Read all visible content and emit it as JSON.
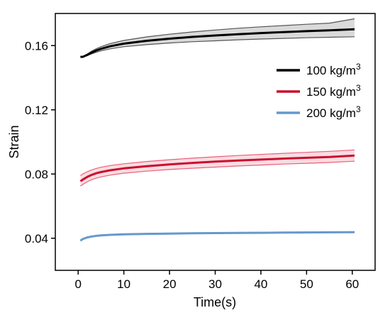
{
  "chart_data": {
    "type": "line",
    "xlabel": "Time(s)",
    "ylabel": "Strain",
    "xlim": [
      -5,
      65
    ],
    "ylim": [
      0.02,
      0.18
    ],
    "x_ticks": [
      0,
      10,
      20,
      30,
      40,
      50,
      60
    ],
    "x_tick_labels": [
      "0",
      "10",
      "20",
      "30",
      "40",
      "50",
      "60"
    ],
    "y_ticks": [
      0.04,
      0.08,
      0.12,
      0.16
    ],
    "y_tick_labels": [
      "0.04",
      "0.08",
      "0.12",
      "0.16"
    ],
    "grid": false,
    "legend_position": "right",
    "x": [
      0.5,
      1,
      2,
      3,
      4,
      5,
      7,
      10,
      15,
      20,
      25,
      30,
      35,
      40,
      45,
      50,
      55,
      60.5
    ],
    "series": [
      {
        "name": "100 kg/m3",
        "label_main": "100 kg/m",
        "label_sup": "3",
        "color": "#000000",
        "band_color": "#555555",
        "values": [
          0.153,
          0.153,
          0.1542,
          0.1557,
          0.157,
          0.158,
          0.1596,
          0.1612,
          0.163,
          0.1643,
          0.1654,
          0.1663,
          0.1671,
          0.1678,
          0.1684,
          0.169,
          0.1695,
          0.1702
        ],
        "upper": [
          0.153,
          0.1532,
          0.1548,
          0.1566,
          0.1581,
          0.1593,
          0.1612,
          0.1632,
          0.1654,
          0.1671,
          0.1685,
          0.1697,
          0.1708,
          0.1717,
          0.1725,
          0.1733,
          0.174,
          0.1767
        ],
        "lower": [
          0.153,
          0.153,
          0.1538,
          0.1549,
          0.1559,
          0.1567,
          0.158,
          0.1593,
          0.1606,
          0.1616,
          0.1624,
          0.163,
          0.1636,
          0.1641,
          0.1645,
          0.1649,
          0.1652,
          0.1655
        ]
      },
      {
        "name": "150 kg/m3",
        "label_main": "150 kg/m",
        "label_sup": "3",
        "color": "#c8102e",
        "band_color": "#e8607a",
        "values": [
          0.0755,
          0.0765,
          0.0782,
          0.0795,
          0.0805,
          0.0812,
          0.0823,
          0.0835,
          0.0849,
          0.086,
          0.0869,
          0.0877,
          0.0884,
          0.089,
          0.0896,
          0.0901,
          0.0906,
          0.0915
        ],
        "upper": [
          0.079,
          0.08,
          0.0815,
          0.0826,
          0.0835,
          0.0842,
          0.0853,
          0.0864,
          0.0878,
          0.0889,
          0.0899,
          0.0907,
          0.0915,
          0.0922,
          0.0929,
          0.0935,
          0.0941,
          0.095
        ],
        "lower": [
          0.0725,
          0.0735,
          0.0752,
          0.0765,
          0.0775,
          0.0782,
          0.0793,
          0.0805,
          0.0818,
          0.0828,
          0.0836,
          0.0843,
          0.085,
          0.0856,
          0.0862,
          0.0867,
          0.0872,
          0.088
        ]
      },
      {
        "name": "200 kg/m3",
        "label_main": "200 kg/m",
        "label_sup": "3",
        "color": "#6699cc",
        "band_color": "#9bbce0",
        "values": [
          0.0385,
          0.0395,
          0.0405,
          0.0411,
          0.0415,
          0.0418,
          0.0421,
          0.0424,
          0.0427,
          0.0429,
          0.0431,
          0.0432,
          0.0433,
          0.0434,
          0.0435,
          0.0436,
          0.0437,
          0.0438
        ],
        "upper": [
          0.0388,
          0.0398,
          0.0408,
          0.0414,
          0.0418,
          0.0421,
          0.0424,
          0.0427,
          0.043,
          0.0432,
          0.0434,
          0.0435,
          0.0436,
          0.0437,
          0.0438,
          0.0439,
          0.044,
          0.0441
        ],
        "lower": [
          0.0382,
          0.0392,
          0.0402,
          0.0408,
          0.0412,
          0.0415,
          0.0418,
          0.0421,
          0.0424,
          0.0426,
          0.0428,
          0.0429,
          0.043,
          0.0431,
          0.0432,
          0.0433,
          0.0434,
          0.0435
        ]
      }
    ]
  }
}
